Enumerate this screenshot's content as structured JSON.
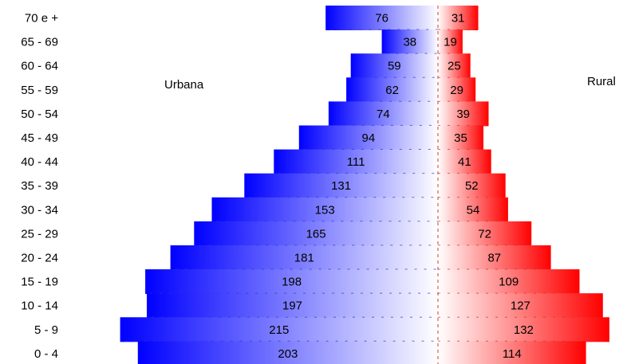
{
  "chart_data": {
    "type": "bar",
    "orientation": "horizontal",
    "layout": "population-pyramid",
    "categories": [
      "70 e +",
      "65 - 69",
      "60 - 64",
      "55 - 59",
      "50 - 54",
      "45 - 49",
      "40 - 44",
      "35 - 39",
      "30 - 34",
      "25 - 29",
      "20 - 24",
      "15 - 19",
      "10 - 14",
      "5 - 9",
      "0 - 4"
    ],
    "series": [
      {
        "name": "Urbana",
        "side": "left",
        "color": "#0000ff",
        "values": [
          76,
          38,
          59,
          62,
          74,
          94,
          111,
          131,
          153,
          165,
          181,
          198,
          197,
          215,
          203
        ]
      },
      {
        "name": "Rural",
        "side": "right",
        "color": "#ff0000",
        "values": [
          31,
          19,
          25,
          29,
          39,
          35,
          41,
          52,
          54,
          72,
          87,
          109,
          127,
          132,
          114
        ]
      }
    ],
    "grid": false,
    "legend": "none"
  }
}
